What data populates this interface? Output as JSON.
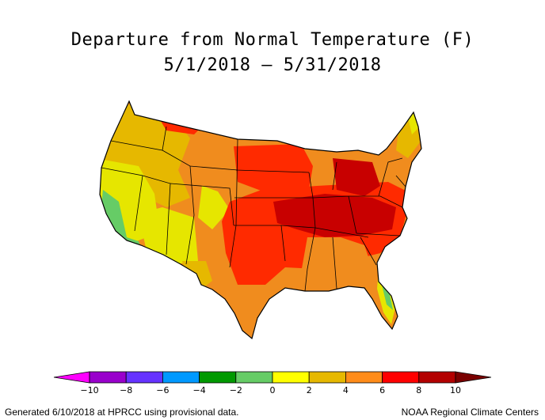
{
  "title": "Departure from Normal Temperature (F)",
  "subtitle": "5/1/2018 – 5/31/2018",
  "legend": {
    "ticks": [
      "−10",
      "−8",
      "−6",
      "−4",
      "−2",
      "0",
      "2",
      "4",
      "6",
      "8",
      "10"
    ],
    "colors": [
      "#ff00ff",
      "#9900cc",
      "#6633ff",
      "#0099ff",
      "#009900",
      "#66cc66",
      "#ffff00",
      "#e6b800",
      "#ff8c1a",
      "#ff0000",
      "#b30000",
      "#7a0000"
    ]
  },
  "map": {
    "palette": {
      "green": "#66cc66",
      "yellow": "#e6e600",
      "light_orange": "#e6b800",
      "orange": "#f08c1e",
      "red": "#ff2a00",
      "dark_red": "#c80000"
    }
  },
  "footer_left": "Generated 6/10/2018 at HPRCC using provisional data.",
  "footer_right": "NOAA Regional Climate Centers"
}
